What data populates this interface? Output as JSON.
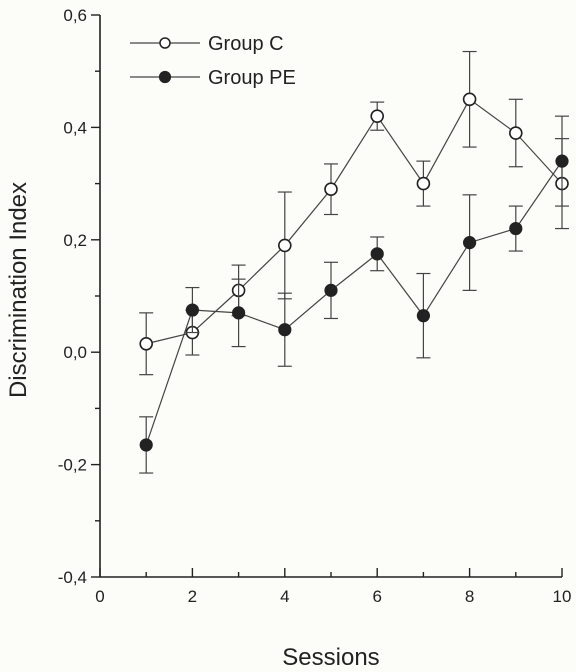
{
  "chart_data": {
    "type": "line",
    "xlabel": "Sessions",
    "ylabel": "Discrimination Index",
    "xlim": [
      0,
      10
    ],
    "ylim": [
      -0.4,
      0.6
    ],
    "xticks": [
      0,
      2,
      4,
      6,
      8,
      10
    ],
    "xtick_labels": [
      "0",
      "2",
      "4",
      "6",
      "8",
      "10"
    ],
    "yticks": [
      -0.4,
      -0.2,
      0.0,
      0.2,
      0.4,
      0.6
    ],
    "ytick_labels": [
      "-0,4",
      "-0,2",
      "0,0",
      "0,2",
      "0,4",
      "0,6"
    ],
    "legend_position": "top-left",
    "grid": false,
    "x": [
      1,
      2,
      3,
      4,
      5,
      6,
      7,
      8,
      9,
      10
    ],
    "series": [
      {
        "name": "Group C",
        "marker": "open-circle",
        "values": [
          0.015,
          0.035,
          0.11,
          0.19,
          0.29,
          0.42,
          0.3,
          0.45,
          0.39,
          0.3
        ],
        "errors": [
          0.055,
          0.04,
          0.045,
          0.095,
          0.045,
          0.025,
          0.04,
          0.085,
          0.06,
          0.08
        ]
      },
      {
        "name": "Group PE",
        "marker": "filled-circle",
        "values": [
          -0.165,
          0.075,
          0.07,
          0.04,
          0.11,
          0.175,
          0.065,
          0.195,
          0.22,
          0.34
        ],
        "errors": [
          0.05,
          0.04,
          0.06,
          0.065,
          0.05,
          0.03,
          0.075,
          0.085,
          0.04,
          0.08
        ]
      }
    ]
  },
  "colors": {
    "line": "#444444",
    "open_marker_fill": "#ffffff",
    "filled_marker_fill": "#222222",
    "axis": "#222222"
  }
}
